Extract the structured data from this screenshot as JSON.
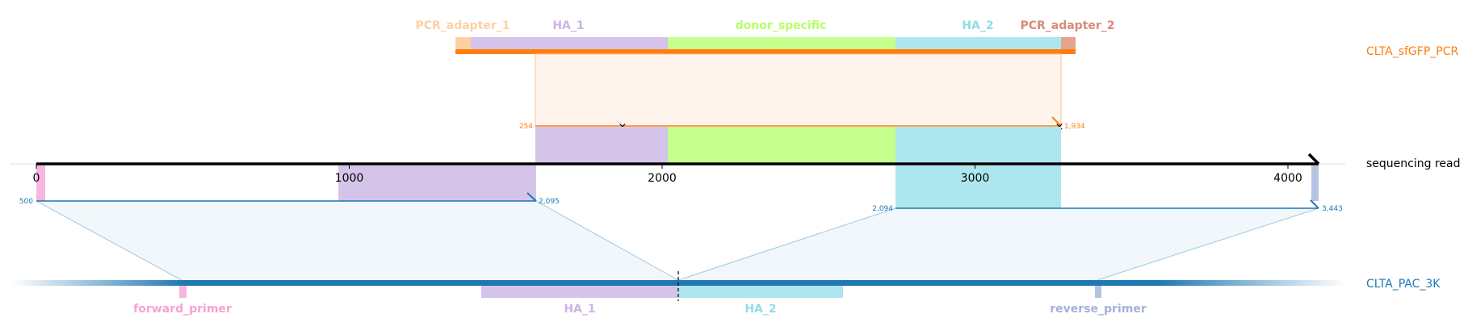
{
  "colors": {
    "pcr_adapter_1": "#fdd0a2",
    "ha_1": "#d5c4ea",
    "donor_specific": "#c6ff8c",
    "ha_2": "#aee6ef",
    "pcr_adapter_2": "#e3a38c",
    "forward_primer": "#f7b6df",
    "reverse_primer": "#b5c2e2",
    "sfgfp_ref": "#ff7f0e",
    "pac_ref": "#1f77b4",
    "read": "#000000"
  },
  "top_reference": {
    "name": "CLTA_sfGFP_PCR",
    "features": [
      {
        "id": "pcr_adapter_1",
        "label": "PCR_adapter_1",
        "label_color": "#fdd0a2"
      },
      {
        "id": "ha_1",
        "label": "HA_1",
        "label_color": "#cdb4e6"
      },
      {
        "id": "donor_specific",
        "label": "donor_specific",
        "label_color": "#b5ff66"
      },
      {
        "id": "ha_2",
        "label": "HA_2",
        "label_color": "#8fdcea"
      },
      {
        "id": "pcr_adapter_2",
        "label": "PCR_adapter_2",
        "label_color": "#d98a78"
      }
    ],
    "alignment": {
      "ref_start": "254",
      "ref_end": "1,934"
    }
  },
  "read": {
    "name": "sequencing read",
    "ticks": [
      "0",
      "1000",
      "2000",
      "3000",
      "4000"
    ],
    "tick_values": [
      0,
      1000,
      2000,
      3000,
      4000
    ],
    "length": 4100
  },
  "bottom_reference": {
    "name": "CLTA_PAC_3K",
    "features": [
      {
        "id": "forward_primer",
        "label": "forward_primer",
        "label_color": "#f7a1d3"
      },
      {
        "id": "ha_1",
        "label": "HA_1",
        "label_color": "#cdb4e6"
      },
      {
        "id": "ha_2",
        "label": "HA_2",
        "label_color": "#8fdcea"
      },
      {
        "id": "reverse_primer",
        "label": "reverse_primer",
        "label_color": "#a3b2d8"
      }
    ],
    "alignments": [
      {
        "ref_start": "500",
        "ref_end": "2,095"
      },
      {
        "ref_start": "2,094",
        "ref_end": "3,443"
      }
    ]
  }
}
